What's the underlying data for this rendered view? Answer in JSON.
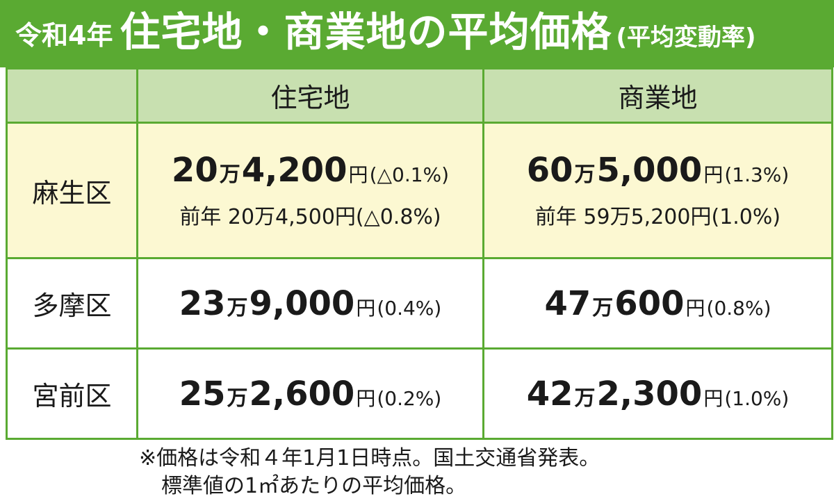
{
  "title": {
    "era": "令和4年",
    "main": "住宅地・商業地の平均価格",
    "sub": "(平均変動率)"
  },
  "headers": {
    "residential": "住宅地",
    "commercial": "商業地"
  },
  "rows": [
    {
      "district": "麻生区",
      "residential": {
        "man": "20",
        "rest": "4,200",
        "yen": "円",
        "rate": "(△0.1%)",
        "prev": "前年 20万4,500円(△0.8%)"
      },
      "commercial": {
        "man": "60",
        "rest": "5,000",
        "yen": "円",
        "rate": "(1.3%)",
        "prev": "前年 59万5,200円(1.0%)"
      }
    },
    {
      "district": "多摩区",
      "residential": {
        "man": "23",
        "rest": "9,000",
        "yen": "円",
        "rate": "(0.4%)"
      },
      "commercial": {
        "man": "47",
        "rest": "600",
        "yen": "円",
        "rate": "(0.8%)"
      }
    },
    {
      "district": "宮前区",
      "residential": {
        "man": "25",
        "rest": "2,600",
        "yen": "円",
        "rate": "(0.2%)"
      },
      "commercial": {
        "man": "42",
        "rest": "2,300",
        "yen": "円",
        "rate": "(1.0%)"
      }
    }
  ],
  "man_label": "万",
  "note": {
    "line1": "※価格は令和４年1月1日時点。国土交通省発表。",
    "line2": "標準値の1㎡あたりの平均価格。"
  },
  "colors": {
    "green": "#5aaa32",
    "header_bg": "#c8e0b0",
    "highlight_bg": "#fcf8d2"
  }
}
